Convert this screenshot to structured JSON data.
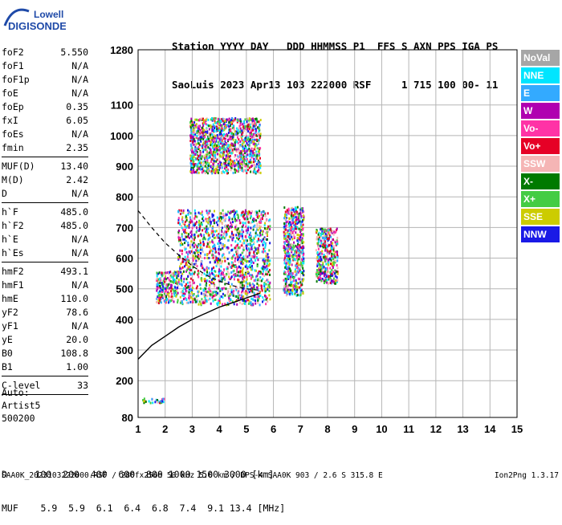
{
  "logo": {
    "line1": "Lowell",
    "line2": "DIGISONDE"
  },
  "header": {
    "line1": "Station YYYY DAY   DDD HHMMSS P1  FFS S AXN PPS IGA PS",
    "line2": "SaoLuis 2023 Apr13 103 222000 RSF     1 715 100 00- 11"
  },
  "params": [
    {
      "name": "foF2",
      "value": "5.550"
    },
    {
      "name": "foF1",
      "value": "N/A"
    },
    {
      "name": "foF1p",
      "value": "N/A"
    },
    {
      "name": "foE",
      "value": "N/A"
    },
    {
      "name": "foEp",
      "value": "0.35"
    },
    {
      "name": "fxI",
      "value": "6.05"
    },
    {
      "name": "foEs",
      "value": "N/A"
    },
    {
      "name": "fmin",
      "value": "2.35"
    },
    {
      "divider": true
    },
    {
      "name": "MUF(D)",
      "value": "13.40"
    },
    {
      "name": "M(D)",
      "value": "2.42"
    },
    {
      "name": "D",
      "value": "N/A"
    },
    {
      "divider": true
    },
    {
      "name": "h`F",
      "value": "485.0"
    },
    {
      "name": "h`F2",
      "value": "485.0"
    },
    {
      "name": "h`E",
      "value": "N/A"
    },
    {
      "name": "h`Es",
      "value": "N/A"
    },
    {
      "divider": true
    },
    {
      "name": "hmF2",
      "value": "493.1"
    },
    {
      "name": "hmF1",
      "value": "N/A"
    },
    {
      "name": "hmE",
      "value": "110.0"
    },
    {
      "name": "yF2",
      "value": "78.6"
    },
    {
      "name": "yF1",
      "value": "N/A"
    },
    {
      "name": "yE",
      "value": "20.0"
    },
    {
      "name": "B0",
      "value": "108.8"
    },
    {
      "name": "B1",
      "value": "1.00"
    },
    {
      "divider": true
    },
    {
      "name": "C-level",
      "value": "33"
    },
    {
      "divider": true
    }
  ],
  "auto": {
    "line1": "Auto:",
    "line2": "Artist5",
    "line3": "500200"
  },
  "legend": [
    {
      "label": "NoVal",
      "color": "#a6a6a6"
    },
    {
      "label": "NNE",
      "color": "#00e5ff"
    },
    {
      "label": "E",
      "color": "#33aaff"
    },
    {
      "label": "W",
      "color": "#b000b0"
    },
    {
      "label": "Vo-",
      "color": "#ff33a6"
    },
    {
      "label": "Vo+",
      "color": "#e60026"
    },
    {
      "label": "SSW",
      "color": "#f5b5b5"
    },
    {
      "label": "X-",
      "color": "#007a00"
    },
    {
      "label": "X+",
      "color": "#44cc44"
    },
    {
      "label": "SSE",
      "color": "#cccc00"
    },
    {
      "label": "NNW",
      "color": "#1a1ae6"
    }
  ],
  "muf_table": {
    "d_label": "D",
    "muf_label": "MUF",
    "d_values": [
      "100",
      "200",
      "400",
      "600",
      "800",
      "1000",
      "1500",
      "3000"
    ],
    "d_unit": "[km]",
    "muf_values": [
      "5.9",
      "5.9",
      "6.1",
      "6.4",
      "6.8",
      "7.4",
      "9.1",
      "13.4"
    ],
    "muf_unit": "[MHz]"
  },
  "footer": {
    "left": "SAA0K_2023103222000.RSF / 280fx256h 50 kHz 5.0 km / DPS-4 SAA0K 903 / 2.6 S 315.8 E",
    "right": "Ion2Png 1.3.17"
  },
  "chart_data": {
    "type": "scatter",
    "xlim": [
      1,
      15
    ],
    "ylim": [
      80,
      1280
    ],
    "x_ticks": [
      "1",
      "2",
      "3",
      "4",
      "5",
      "6",
      "7",
      "8",
      "9",
      "10",
      "11",
      "12",
      "13",
      "14",
      "15"
    ],
    "y_ticks": [
      "80",
      "200",
      "300",
      "400",
      "500",
      "600",
      "700",
      "800",
      "900",
      "1000",
      "1100",
      "1280"
    ],
    "grid": true,
    "legend_placement": "right",
    "echo_regions": [
      {
        "name": "F-trace main body",
        "x": [
          2.45,
          5.85
        ],
        "y": [
          450,
          760
        ]
      },
      {
        "name": "low extension",
        "x": [
          1.65,
          2.45
        ],
        "y": [
          455,
          560
        ]
      },
      {
        "name": "6.5 MHz cluster",
        "x": [
          6.35,
          7.1
        ],
        "y": [
          480,
          770
        ]
      },
      {
        "name": "8 MHz cluster",
        "x": [
          7.55,
          8.35
        ],
        "y": [
          520,
          700
        ]
      },
      {
        "name": "high spread",
        "x": [
          2.9,
          5.5
        ],
        "y": [
          880,
          1060
        ]
      },
      {
        "name": "low Es",
        "x": [
          1.1,
          1.95
        ],
        "y": [
          130,
          145
        ]
      }
    ],
    "profile_curve": {
      "x": [
        1,
        1.5,
        2,
        2.5,
        3,
        3.5,
        4,
        4.5,
        5,
        5.5
      ],
      "y": [
        270,
        315,
        345,
        375,
        400,
        420,
        440,
        455,
        470,
        485
      ]
    },
    "dashed_curve": {
      "x": [
        1,
        1.5,
        2,
        2.5,
        3,
        3.5,
        4,
        4.5,
        5,
        5.5
      ],
      "y": [
        755,
        700,
        650,
        610,
        575,
        545,
        525,
        510,
        500,
        495
      ]
    }
  }
}
